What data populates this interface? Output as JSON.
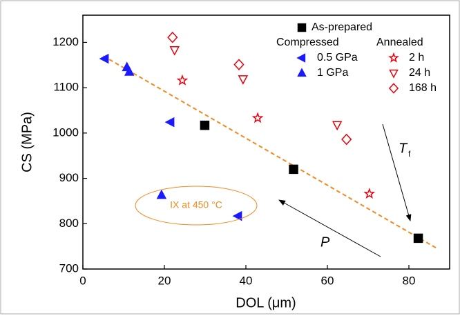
{
  "chart_data": {
    "type": "scatter",
    "x_label": "DOL (μm)",
    "y_label": "CS (MPa)",
    "xlim": [
      0,
      90
    ],
    "ylim": [
      700,
      1260
    ],
    "xticks": [
      0,
      20,
      40,
      60,
      80
    ],
    "yticks": [
      700,
      800,
      900,
      1000,
      1100,
      1200
    ],
    "legend_groups": [
      "Compressed",
      "Annealed"
    ],
    "series": [
      {
        "name": "As-prepared",
        "color": "#000000",
        "marker": "square",
        "x": [
          29.9,
          51.7,
          82.3
        ],
        "values": [
          1017,
          920,
          768
        ]
      },
      {
        "name": "0.5 GPa",
        "color": "#1a1aff",
        "marker": "triangle-left",
        "x": [
          5.4,
          21.5,
          38.1
        ],
        "values": [
          1164,
          1024,
          817
        ]
      },
      {
        "name": "1 GPa",
        "color": "#1a1aff",
        "marker": "triangle-up",
        "x": [
          10.8,
          11.4,
          19.3
        ],
        "values": [
          1145,
          1135,
          863
        ]
      },
      {
        "name": "2 h",
        "color": "#e8000b",
        "marker": "star",
        "x": [
          24.4,
          42.9,
          70.3
        ],
        "values": [
          1116,
          1033,
          866
        ]
      },
      {
        "name": "24 h",
        "color": "#e8000b",
        "marker": "triangle-down",
        "x": [
          22.5,
          39.3,
          62.4
        ],
        "values": [
          1183,
          1119,
          1018
        ]
      },
      {
        "name": "168 h",
        "color": "#e8000b",
        "marker": "diamond",
        "x": [
          22,
          38.3,
          64.7
        ],
        "values": [
          1211,
          1151,
          986
        ]
      }
    ],
    "fit_line": {
      "color": "#f28a1e",
      "x": [
        5,
        87
      ],
      "values": [
        1170,
        745
      ]
    },
    "annotations": [
      {
        "text": "IX at 450 °C",
        "color": "#f28a1e"
      },
      {
        "text": "T",
        "subscript": "f"
      },
      {
        "text": "P"
      }
    ]
  }
}
